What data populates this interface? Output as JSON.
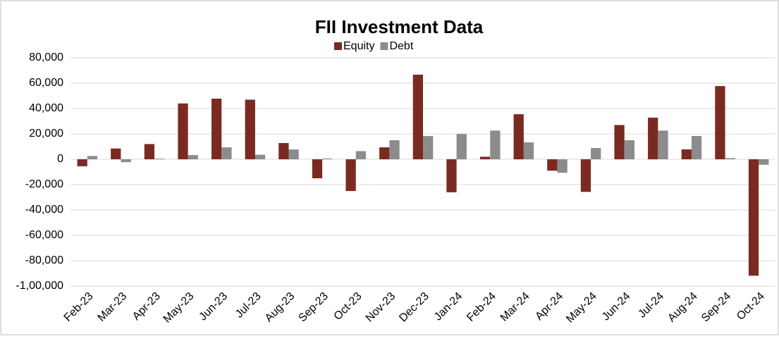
{
  "chart_data": {
    "type": "bar",
    "title": "FII Investment Data",
    "categories": [
      "Feb-23",
      "Mar-23",
      "Apr-23",
      "May-23",
      "Jun-23",
      "Jul-23",
      "Aug-23",
      "Sep-23",
      "Oct-23",
      "Nov-23",
      "Dec-23",
      "Jan-24",
      "Feb-24",
      "Mar-24",
      "Apr-24",
      "May-24",
      "Jun-24",
      "Jul-24",
      "Aug-24",
      "Sep-24",
      "Oct-24"
    ],
    "series": [
      {
        "name": "Equity",
        "color": "#7b2a22",
        "values": [
          -5500,
          8500,
          12000,
          44000,
          47800,
          47000,
          12800,
          -15000,
          -25000,
          9400,
          66700,
          -26000,
          2000,
          35500,
          -9000,
          -25700,
          27000,
          32800,
          7800,
          57700,
          -91800
        ]
      },
      {
        "name": "Debt",
        "color": "#8c8c8c",
        "values": [
          2600,
          -2300,
          500,
          3300,
          9400,
          3600,
          7700,
          600,
          6400,
          15000,
          18300,
          20000,
          22600,
          13400,
          -10600,
          8900,
          15000,
          22600,
          18300,
          900,
          -4300
        ]
      }
    ],
    "ylim": [
      -100000,
      80000
    ],
    "yticks": [
      {
        "value": -100000,
        "label": "-1,00,000"
      },
      {
        "value": -80000,
        "label": "-80,000"
      },
      {
        "value": -60000,
        "label": "-60,000"
      },
      {
        "value": -40000,
        "label": "-40,000"
      },
      {
        "value": -20000,
        "label": "-20,000"
      },
      0,
      {
        "value": 20000,
        "label": "20,000"
      },
      {
        "value": 40000,
        "label": "40,000"
      },
      {
        "value": 60000,
        "label": "60,000"
      },
      {
        "value": 80000,
        "label": "80,000"
      }
    ],
    "grid": true,
    "legend": "top"
  }
}
